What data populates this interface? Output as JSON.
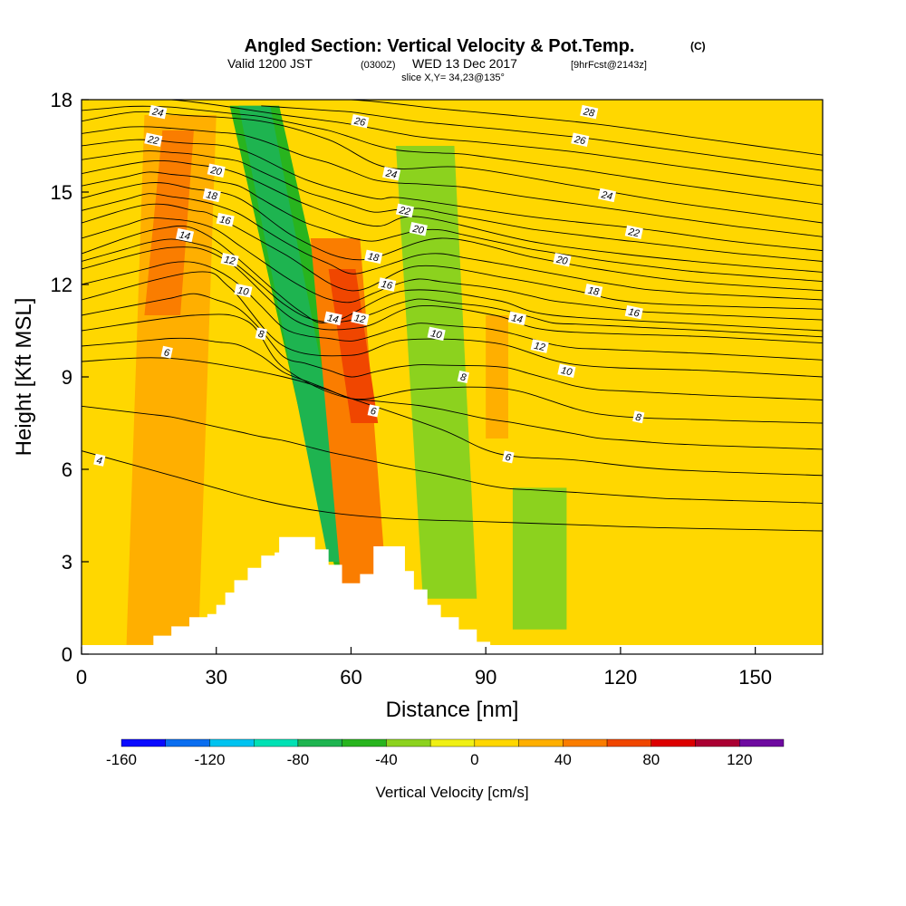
{
  "header": {
    "title_main": "Angled Section: Vertical Velocity & Pot.Temp.",
    "title_unit": "(C)",
    "valid_prefix": "Valid 1200 JST",
    "valid_z": "(0300Z)",
    "valid_date": "WED 13 Dec 2017",
    "valid_fcst": "[9hrFcst@2143z]",
    "slice": "slice X,Y= 34,23@135°"
  },
  "chart_data": {
    "type": "heatmap",
    "title": "Angled Section: Vertical Velocity & Pot.Temp.",
    "xlabel": "Distance [nm]",
    "ylabel": "Height [Kft MSL]",
    "xlim": [
      0,
      165
    ],
    "ylim": [
      0,
      18
    ],
    "x_ticks": [
      0,
      30,
      60,
      90,
      120,
      150
    ],
    "y_ticks": [
      0,
      3,
      6,
      9,
      12,
      15,
      18
    ],
    "colorbar": {
      "label": "Vertical Velocity [cm/s]",
      "tick_labels": [
        -160,
        -120,
        -80,
        -40,
        0,
        40,
        80,
        120
      ],
      "bin_edges": [
        -160,
        -140,
        -120,
        -100,
        -80,
        -60,
        -40,
        -20,
        0,
        20,
        40,
        60,
        80,
        100,
        120,
        140
      ],
      "colors": [
        "#0a0aff",
        "#0a6ef0",
        "#00c3f0",
        "#00e1b4",
        "#1eb450",
        "#28b41e",
        "#8cd21e",
        "#f0f014",
        "#ffd700",
        "#ffaf00",
        "#fa7d00",
        "#f04600",
        "#dc0000",
        "#aa0032",
        "#6e0aa0"
      ]
    },
    "background_velocity_cm_s": 0,
    "velocity_features": [
      {
        "x": [
          10,
          14,
          30,
          26
        ],
        "z": [
          0.3,
          17.5,
          17.5,
          0.3
        ],
        "vv": 30
      },
      {
        "x": [
          14,
          18,
          25,
          22
        ],
        "z": [
          11,
          17,
          17,
          11
        ],
        "vv": 50
      },
      {
        "x": [
          33,
          44,
          68,
          57
        ],
        "z": [
          17.8,
          17.8,
          2.4,
          2.4
        ],
        "vv": -50
      },
      {
        "x": [
          35,
          42,
          62,
          55
        ],
        "z": [
          17.8,
          17.8,
          3.0,
          3.0
        ],
        "vv": -70
      },
      {
        "x": [
          51,
          62,
          68,
          58
        ],
        "z": [
          13.5,
          13.5,
          2.0,
          2.0
        ],
        "vv": 40
      },
      {
        "x": [
          55,
          61,
          66,
          60
        ],
        "z": [
          12.5,
          12.5,
          7.5,
          7.5
        ],
        "vv": 60
      },
      {
        "x": [
          70,
          83,
          88,
          76
        ],
        "z": [
          16.5,
          16.5,
          1.8,
          1.8
        ],
        "vv": -25
      },
      {
        "x": [
          96,
          108,
          108,
          96
        ],
        "z": [
          5.4,
          5.4,
          0.8,
          0.8
        ],
        "vv": -30
      },
      {
        "x": [
          90,
          95,
          95,
          90
        ],
        "z": [
          11,
          11,
          7,
          7
        ],
        "vv": 30
      },
      {
        "x": [
          125,
          165,
          165,
          125
        ],
        "z": [
          18,
          18,
          10,
          10
        ],
        "vv": 10
      }
    ],
    "terrain": {
      "x": [
        10,
        16,
        20,
        24,
        28,
        30,
        32,
        34,
        37,
        40,
        43,
        44,
        48,
        52,
        55,
        58,
        60,
        62,
        65,
        68,
        72,
        74,
        77,
        80,
        84,
        88,
        91
      ],
      "z": [
        0.2,
        0.6,
        0.9,
        1.2,
        1.3,
        1.6,
        2.0,
        2.4,
        2.8,
        3.2,
        3.3,
        3.8,
        3.8,
        3.4,
        2.9,
        2.3,
        2.3,
        2.6,
        3.5,
        3.5,
        2.7,
        2.1,
        1.6,
        1.2,
        0.8,
        0.4,
        0.2
      ]
    },
    "theta_contours": [
      {
        "label": "4",
        "x": [
          0,
          20,
          40,
          55,
          70,
          90,
          110,
          130,
          165
        ],
        "z": [
          6.6,
          5.8,
          5.0,
          4.6,
          4.4,
          4.3,
          4.2,
          4.1,
          4.0
        ]
      },
      {
        "label": "6",
        "x": [
          0,
          20,
          45,
          62,
          80,
          93,
          110,
          130,
          165
        ],
        "z": [
          9.5,
          9.6,
          9.0,
          8.2,
          7.3,
          6.5,
          6.3,
          6.0,
          5.8
        ]
      },
      {
        "label": "8",
        "x": [
          0,
          25,
          37,
          45,
          60,
          75,
          95,
          115,
          140,
          165
        ],
        "z": [
          10.5,
          11.0,
          10.8,
          9.3,
          8.3,
          8.6,
          8.6,
          7.8,
          7.6,
          7.5
        ]
      },
      {
        "label": "10",
        "x": [
          0,
          25,
          33,
          45,
          60,
          72,
          92,
          110,
          140,
          165
        ],
        "z": [
          11.5,
          12.4,
          11.9,
          10.0,
          9.7,
          10.2,
          10.1,
          9.4,
          9.2,
          9.0
        ]
      },
      {
        "label": "12",
        "x": [
          0,
          20,
          32,
          48,
          62,
          75,
          92,
          105,
          140,
          165
        ],
        "z": [
          12.5,
          13.2,
          12.8,
          10.8,
          10.6,
          11.3,
          11.0,
          10.5,
          10.3,
          10.1
        ]
      },
      {
        "label": "14",
        "x": [
          0,
          17,
          28,
          48,
          56,
          72,
          92,
          105,
          140,
          165
        ],
        "z": [
          13.0,
          13.8,
          13.6,
          11.2,
          10.8,
          11.8,
          11.5,
          11.0,
          10.7,
          10.5
        ]
      },
      {
        "label": "16",
        "x": [
          0,
          15,
          25,
          30,
          45,
          60,
          75,
          95,
          110,
          125,
          165
        ],
        "z": [
          14.0,
          14.6,
          14.4,
          14.2,
          13.0,
          11.8,
          12.6,
          12.2,
          11.8,
          11.4,
          11.2
        ]
      },
      {
        "label": "18",
        "x": [
          0,
          15,
          25,
          35,
          48,
          62,
          80,
          100,
          115,
          135,
          165
        ],
        "z": [
          14.8,
          15.3,
          15.1,
          14.8,
          13.5,
          12.8,
          13.5,
          12.9,
          12.5,
          12.1,
          11.8
        ]
      },
      {
        "label": "20",
        "x": [
          0,
          15,
          25,
          35,
          50,
          65,
          75,
          100,
          120,
          140,
          165
        ],
        "z": [
          15.6,
          16.0,
          15.9,
          15.6,
          14.6,
          13.9,
          14.2,
          13.4,
          13.0,
          12.7,
          12.4
        ]
      },
      {
        "label": "22",
        "x": [
          0,
          12,
          22,
          35,
          50,
          65,
          72,
          100,
          125,
          145,
          165
        ],
        "z": [
          16.5,
          16.7,
          16.6,
          16.4,
          15.4,
          14.8,
          14.8,
          14.2,
          13.8,
          13.4,
          13.1
        ]
      },
      {
        "label": "24",
        "x": [
          0,
          12,
          22,
          40,
          55,
          68,
          85,
          110,
          130,
          150,
          165
        ],
        "z": [
          17.3,
          17.6,
          17.5,
          17.3,
          16.7,
          15.8,
          15.8,
          15.2,
          14.7,
          14.3,
          14.0
        ]
      },
      {
        "label": "26",
        "x": [
          0,
          20,
          45,
          60,
          75,
          90,
          110,
          130,
          150,
          165
        ],
        "z": [
          18.0,
          18.0,
          17.5,
          17.2,
          16.8,
          16.6,
          16.3,
          15.9,
          15.5,
          15.2
        ]
      },
      {
        "label": "28",
        "x": [
          40,
          60,
          80,
          95,
          115,
          135,
          150,
          165
        ],
        "z": [
          18.0,
          18.0,
          17.7,
          17.5,
          17.2,
          16.8,
          16.5,
          16.2
        ]
      }
    ],
    "contour_labels": [
      {
        "text": "24",
        "x": 17,
        "z": 17.6
      },
      {
        "text": "22",
        "x": 16,
        "z": 16.7
      },
      {
        "text": "20",
        "x": 30,
        "z": 15.7
      },
      {
        "text": "18",
        "x": 29,
        "z": 14.9
      },
      {
        "text": "16",
        "x": 32,
        "z": 14.1
      },
      {
        "text": "14",
        "x": 23,
        "z": 13.6
      },
      {
        "text": "12",
        "x": 33,
        "z": 12.8
      },
      {
        "text": "10",
        "x": 36,
        "z": 11.8
      },
      {
        "text": "8",
        "x": 40,
        "z": 10.4
      },
      {
        "text": "6",
        "x": 19,
        "z": 9.8
      },
      {
        "text": "4",
        "x": 4,
        "z": 6.3
      },
      {
        "text": "26",
        "x": 62,
        "z": 17.3
      },
      {
        "text": "24",
        "x": 69,
        "z": 15.6
      },
      {
        "text": "22",
        "x": 72,
        "z": 14.4
      },
      {
        "text": "20",
        "x": 75,
        "z": 13.8
      },
      {
        "text": "18",
        "x": 65,
        "z": 12.9
      },
      {
        "text": "16",
        "x": 68,
        "z": 12.0
      },
      {
        "text": "14",
        "x": 56,
        "z": 10.9
      },
      {
        "text": "12",
        "x": 62,
        "z": 10.9
      },
      {
        "text": "10",
        "x": 79,
        "z": 10.4
      },
      {
        "text": "8",
        "x": 85,
        "z": 9.0
      },
      {
        "text": "6",
        "x": 65,
        "z": 7.9
      },
      {
        "text": "28",
        "x": 113,
        "z": 17.6
      },
      {
        "text": "26",
        "x": 111,
        "z": 16.7
      },
      {
        "text": "24",
        "x": 117,
        "z": 14.9
      },
      {
        "text": "22",
        "x": 123,
        "z": 13.7
      },
      {
        "text": "20",
        "x": 107,
        "z": 12.8
      },
      {
        "text": "18",
        "x": 114,
        "z": 11.8
      },
      {
        "text": "16",
        "x": 123,
        "z": 11.1
      },
      {
        "text": "14",
        "x": 97,
        "z": 10.9
      },
      {
        "text": "12",
        "x": 102,
        "z": 10.0
      },
      {
        "text": "10",
        "x": 108,
        "z": 9.2
      },
      {
        "text": "8",
        "x": 124,
        "z": 7.7
      },
      {
        "text": "6",
        "x": 95,
        "z": 6.4
      }
    ]
  }
}
